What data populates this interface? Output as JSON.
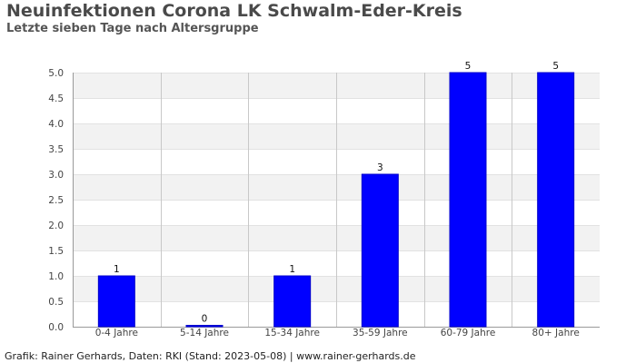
{
  "chart_data": {
    "type": "bar",
    "title": "Neuinfektionen Corona LK Schwalm-Eder-Kreis",
    "subtitle": "Letzte sieben Tage nach Altersgruppe",
    "categories": [
      "0-4 Jahre",
      "5-14 Jahre",
      "15-34 Jahre",
      "35-59 Jahre",
      "60-79 Jahre",
      "80+ Jahre"
    ],
    "values": [
      1,
      0,
      1,
      3,
      5,
      5
    ],
    "ylim": [
      0,
      5
    ],
    "yticks": [
      "0.0",
      "0.5",
      "1.0",
      "1.5",
      "2.0",
      "2.5",
      "3.0",
      "3.5",
      "4.0",
      "4.5",
      "5.0"
    ],
    "bar_color": "#0000ff",
    "grid": true,
    "band_colors": [
      "#ffffff",
      "#f2f2f2"
    ]
  },
  "footer": "Grafik: Rainer Gerhards, Daten: RKI (Stand: 2023-05-08) | www.rainer-gerhards.de"
}
